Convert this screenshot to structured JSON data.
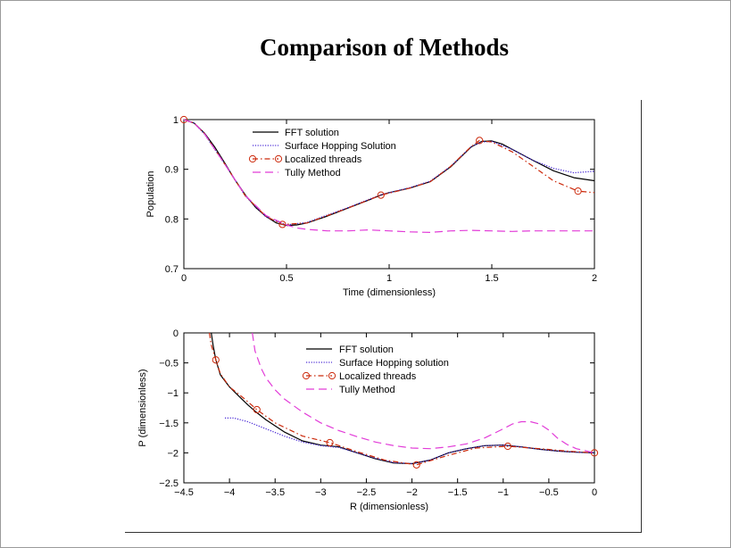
{
  "slide": {
    "title": "Comparison of Methods"
  },
  "colors": {
    "fft": "#000000",
    "surface_hopping": "#4a2bd6",
    "localized_threads": "#cc2a0c",
    "tully": "#e23cd8"
  },
  "chart_data": [
    {
      "type": "line",
      "xlabel": "Time (dimensionless)",
      "ylabel": "Population",
      "xlim": [
        0,
        2
      ],
      "ylim": [
        0.7,
        1.0
      ],
      "xticks": [
        0,
        0.5,
        1,
        1.5,
        2
      ],
      "xtick_labels": [
        "0",
        "0.5",
        "1",
        "1.5",
        "2"
      ],
      "yticks": [
        0.7,
        0.8,
        0.9,
        1.0
      ],
      "ytick_labels": [
        "0.7",
        "0.8",
        "0.9",
        "1"
      ],
      "legend_position": "upper-left",
      "series": [
        {
          "name": "FFT solution",
          "style": "solid",
          "color": "#000000",
          "x": [
            0,
            0.05,
            0.1,
            0.15,
            0.2,
            0.25,
            0.3,
            0.35,
            0.4,
            0.45,
            0.5,
            0.55,
            0.6,
            0.7,
            0.8,
            0.9,
            0.96,
            1.0,
            1.1,
            1.2,
            1.3,
            1.35,
            1.4,
            1.45,
            1.5,
            1.55,
            1.6,
            1.7,
            1.8,
            1.9,
            2.0
          ],
          "y": [
            1.0,
            0.993,
            0.973,
            0.945,
            0.912,
            0.878,
            0.848,
            0.823,
            0.805,
            0.792,
            0.787,
            0.788,
            0.792,
            0.806,
            0.822,
            0.838,
            0.848,
            0.853,
            0.862,
            0.875,
            0.905,
            0.925,
            0.945,
            0.956,
            0.957,
            0.951,
            0.94,
            0.918,
            0.897,
            0.883,
            0.877
          ]
        },
        {
          "name": "Surface Hopping Solution",
          "style": "dotted",
          "color": "#4a2bd6",
          "x": [
            0,
            0.05,
            0.1,
            0.2,
            0.3,
            0.4,
            0.5,
            0.6,
            0.8,
            0.96,
            1.1,
            1.2,
            1.3,
            1.4,
            1.45,
            1.5,
            1.6,
            1.7,
            1.8,
            1.9,
            2.0
          ],
          "y": [
            1.0,
            0.993,
            0.971,
            0.91,
            0.846,
            0.804,
            0.788,
            0.793,
            0.823,
            0.849,
            0.863,
            0.876,
            0.906,
            0.946,
            0.955,
            0.956,
            0.94,
            0.918,
            0.902,
            0.893,
            0.896
          ]
        },
        {
          "name": "Localized threads",
          "style": "dash-dot",
          "color": "#cc2a0c",
          "x": [
            0,
            0.05,
            0.1,
            0.2,
            0.3,
            0.4,
            0.48,
            0.6,
            0.8,
            0.96,
            1.1,
            1.2,
            1.3,
            1.4,
            1.44,
            1.5,
            1.6,
            1.7,
            1.8,
            1.92,
            2.0
          ],
          "y": [
            1.0,
            0.993,
            0.972,
            0.91,
            0.846,
            0.805,
            0.789,
            0.792,
            0.822,
            0.848,
            0.862,
            0.875,
            0.906,
            0.946,
            0.958,
            0.955,
            0.935,
            0.906,
            0.877,
            0.856,
            0.853
          ],
          "marker_x": [
            0,
            0.48,
            0.96,
            1.44,
            1.92
          ],
          "marker_y": [
            1.0,
            0.789,
            0.848,
            0.958,
            0.856
          ]
        },
        {
          "name": "Tully Method",
          "style": "dashed",
          "color": "#e23cd8",
          "x": [
            0,
            0.05,
            0.1,
            0.2,
            0.3,
            0.4,
            0.5,
            0.55,
            0.6,
            0.7,
            0.8,
            0.9,
            1.0,
            1.1,
            1.2,
            1.3,
            1.4,
            1.5,
            1.6,
            1.7,
            1.8,
            1.9,
            2.0
          ],
          "y": [
            1.0,
            0.993,
            0.972,
            0.91,
            0.847,
            0.807,
            0.788,
            0.782,
            0.779,
            0.776,
            0.776,
            0.778,
            0.776,
            0.774,
            0.773,
            0.776,
            0.777,
            0.776,
            0.775,
            0.776,
            0.776,
            0.776,
            0.776
          ]
        }
      ]
    },
    {
      "type": "line",
      "xlabel": "R (dimensionless)",
      "ylabel": "P (dimensionless)",
      "xlim": [
        -4.5,
        0
      ],
      "ylim": [
        -2.5,
        0
      ],
      "xticks": [
        -4.5,
        -4,
        -3.5,
        -3,
        -2.5,
        -2,
        -1.5,
        -1,
        -0.5,
        0
      ],
      "xtick_labels": [
        "−4.5",
        "−4",
        "−3.5",
        "−3",
        "−2.5",
        "−2",
        "−1.5",
        "−1",
        "−0.5",
        "0"
      ],
      "yticks": [
        -2.5,
        -2,
        -1.5,
        -1,
        -0.5,
        0
      ],
      "ytick_labels": [
        "−2.5",
        "−2",
        "−1.5",
        "−1",
        "−0.5",
        "0"
      ],
      "legend_position": "upper-center",
      "series": [
        {
          "name": "FFT solution",
          "style": "solid",
          "color": "#000000",
          "x": [
            -4.2,
            -4.18,
            -4.15,
            -4.1,
            -4.0,
            -3.9,
            -3.8,
            -3.7,
            -3.6,
            -3.4,
            -3.2,
            -3.0,
            -2.8,
            -2.6,
            -2.4,
            -2.2,
            -2.0,
            -1.8,
            -1.6,
            -1.4,
            -1.2,
            -1.0,
            -0.8,
            -0.6,
            -0.4,
            -0.2,
            0
          ],
          "y": [
            0.0,
            -0.2,
            -0.45,
            -0.7,
            -0.9,
            -1.05,
            -1.2,
            -1.33,
            -1.45,
            -1.65,
            -1.8,
            -1.87,
            -1.9,
            -2.0,
            -2.1,
            -2.17,
            -2.18,
            -2.12,
            -2.0,
            -1.93,
            -1.88,
            -1.87,
            -1.9,
            -1.94,
            -1.97,
            -1.99,
            -2.0
          ]
        },
        {
          "name": "Surface Hopping solution",
          "style": "dotted",
          "color": "#4a2bd6",
          "x": [
            -4.05,
            -3.95,
            -3.8,
            -3.6,
            -3.4,
            -3.2,
            -3.0,
            -2.8,
            -2.6,
            -2.4,
            -2.2,
            -2.0,
            -1.8,
            -1.6,
            -1.4,
            -1.2,
            -1.0,
            -0.8,
            -0.6,
            -0.4,
            -0.2,
            0
          ],
          "y": [
            -1.42,
            -1.42,
            -1.48,
            -1.6,
            -1.72,
            -1.82,
            -1.88,
            -1.91,
            -2.0,
            -2.09,
            -2.16,
            -2.18,
            -2.12,
            -2.0,
            -1.93,
            -1.88,
            -1.87,
            -1.9,
            -1.94,
            -1.97,
            -1.99,
            -2.0
          ]
        },
        {
          "name": "Localized threads",
          "style": "dash-dot",
          "color": "#cc2a0c",
          "x": [
            -4.22,
            -4.2,
            -4.15,
            -4.1,
            -4.0,
            -3.85,
            -3.7,
            -3.5,
            -3.2,
            -2.9,
            -2.6,
            -2.3,
            -1.95,
            -1.6,
            -1.3,
            -0.95,
            -0.6,
            -0.3,
            0
          ],
          "y": [
            0.0,
            -0.2,
            -0.45,
            -0.68,
            -0.9,
            -1.08,
            -1.28,
            -1.5,
            -1.72,
            -1.83,
            -1.98,
            -2.12,
            -2.2,
            -2.04,
            -1.92,
            -1.89,
            -1.93,
            -1.97,
            -2.0
          ],
          "marker_x": [
            -4.15,
            -3.7,
            -2.9,
            -1.95,
            -0.95,
            0
          ],
          "marker_y": [
            -0.45,
            -1.28,
            -1.83,
            -2.2,
            -1.89,
            -2.0
          ]
        },
        {
          "name": "Tully Method",
          "style": "dashed",
          "color": "#e23cd8",
          "x": [
            -3.75,
            -3.72,
            -3.65,
            -3.6,
            -3.5,
            -3.4,
            -3.2,
            -3.0,
            -2.8,
            -2.6,
            -2.4,
            -2.2,
            -2.0,
            -1.8,
            -1.6,
            -1.4,
            -1.2,
            -1.0,
            -0.9,
            -0.8,
            -0.7,
            -0.6,
            -0.5,
            -0.4,
            -0.3,
            -0.2,
            0
          ],
          "y": [
            0.0,
            -0.3,
            -0.6,
            -0.75,
            -0.95,
            -1.1,
            -1.32,
            -1.5,
            -1.63,
            -1.73,
            -1.82,
            -1.88,
            -1.92,
            -1.93,
            -1.9,
            -1.85,
            -1.75,
            -1.6,
            -1.52,
            -1.48,
            -1.48,
            -1.52,
            -1.62,
            -1.76,
            -1.86,
            -1.93,
            -2.0
          ]
        }
      ]
    }
  ]
}
